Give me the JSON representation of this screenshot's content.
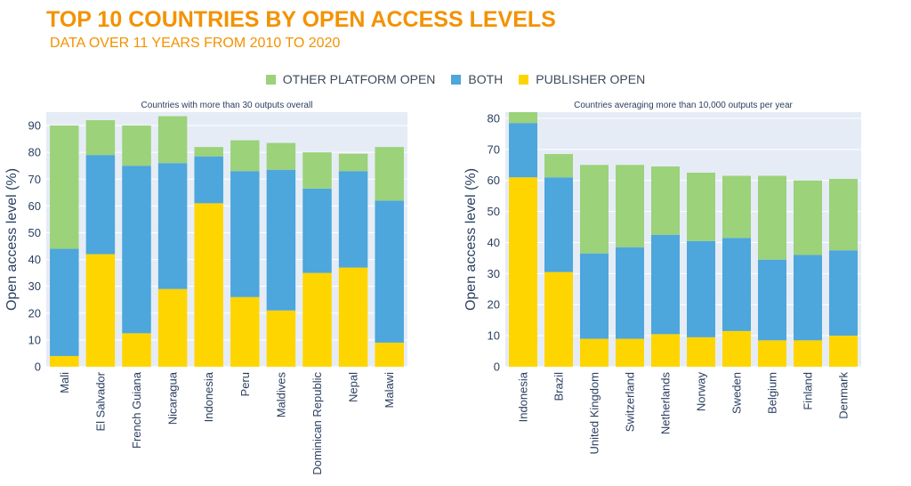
{
  "title": "TOP 10 COUNTRIES BY OPEN ACCESS LEVELS",
  "subtitle": "DATA OVER 11 YEARS FROM 2010 TO 2020",
  "legend": [
    {
      "label": "OTHER PLATFORM OPEN",
      "color": "#9BD27A"
    },
    {
      "label": "BOTH",
      "color": "#4DA6DC"
    },
    {
      "label": "PUBLISHER OPEN",
      "color": "#FFD500"
    }
  ],
  "chart_data": [
    {
      "type": "bar",
      "stacked": true,
      "title": "Countries with more than 30 outputs overall",
      "ylabel": "Open access level (%)",
      "xlabel": "",
      "ylim": [
        0,
        95
      ],
      "yticks": [
        0,
        10,
        20,
        30,
        40,
        50,
        60,
        70,
        80,
        90
      ],
      "grid": true,
      "categories": [
        "Mali",
        "El Salvador",
        "French Guiana",
        "Nicaragua",
        "Indonesia",
        "Peru",
        "Maldives",
        "Dominican Republic",
        "Nepal",
        "Malawi"
      ],
      "series": [
        {
          "name": "PUBLISHER OPEN",
          "color": "#FFD500",
          "values": [
            4,
            42,
            12.5,
            29,
            61,
            26,
            21,
            35,
            37,
            9
          ]
        },
        {
          "name": "BOTH",
          "color": "#4DA6DC",
          "values": [
            40,
            37,
            62.5,
            47,
            17.5,
            47,
            52.5,
            31.5,
            36,
            53
          ]
        },
        {
          "name": "OTHER PLATFORM OPEN",
          "color": "#9BD27A",
          "values": [
            46,
            13,
            15,
            17.5,
            3.5,
            11.5,
            10,
            13.5,
            6.5,
            20
          ]
        }
      ]
    },
    {
      "type": "bar",
      "stacked": true,
      "title": "Countries averaging more than 10,000 outputs per year",
      "ylabel": "Open access level (%)",
      "xlabel": "",
      "ylim": [
        0,
        82
      ],
      "yticks": [
        0,
        10,
        20,
        30,
        40,
        50,
        60,
        70,
        80
      ],
      "grid": true,
      "categories": [
        "Indonesia",
        "Brazil",
        "United Kingdom",
        "Switzerland",
        "Netherlands",
        "Norway",
        "Sweden",
        "Belgium",
        "Finland",
        "Denmark"
      ],
      "series": [
        {
          "name": "PUBLISHER OPEN",
          "color": "#FFD500",
          "values": [
            61,
            30.5,
            9,
            9,
            10.5,
            9.5,
            11.5,
            8.5,
            8.5,
            10
          ]
        },
        {
          "name": "BOTH",
          "color": "#4DA6DC",
          "values": [
            17.5,
            30.5,
            27.5,
            29.5,
            32,
            31,
            30,
            26,
            27.5,
            27.5
          ]
        },
        {
          "name": "OTHER PLATFORM OPEN",
          "color": "#9BD27A",
          "values": [
            3.5,
            7.5,
            28.5,
            26.5,
            22,
            22,
            20,
            27,
            24,
            23
          ]
        }
      ]
    }
  ]
}
